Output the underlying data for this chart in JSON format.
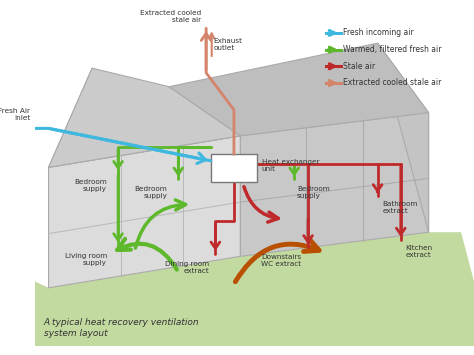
{
  "title": "A typical heat recovery ventilation\nsystem layout",
  "legend_items": [
    {
      "label": "Fresh incoming air",
      "color": "#3fb8e0"
    },
    {
      "label": "Warmed, filtered fresh air",
      "color": "#5db82b"
    },
    {
      "label": "Stale air",
      "color": "#c0292b"
    },
    {
      "label": "Extracted cooled stale air",
      "color": "#d4846a"
    }
  ],
  "labels": {
    "fresh_air_inlet": "Fresh Air\ninlet",
    "extracted_cooled": "Extracted cooled\nstale air",
    "exhaust_outlet": "Exhaust\noutlet",
    "heat_exchanger": "Heat exchanger\nunit",
    "bedroom_supply_left": "Bedroom\nsupply",
    "bedroom_supply_mid": "Bedroom\nsupply",
    "bedroom_supply_right": "Bedroom\nsupply",
    "living_room": "Living room\nsupply",
    "dining_room": "Dining room\nextract",
    "downstairs_wc": "Downstairs\nWC extract",
    "bathroom": "Bathroom\nextract",
    "kitchen": "Kitchen\nextract"
  },
  "fresh_color": "#3fb8e0",
  "green_color": "#5db82b",
  "red_color": "#c0292b",
  "salmon_color": "#d4846a",
  "wall_light": "#dcdcdc",
  "wall_mid": "#c8c8c8",
  "wall_dark": "#b8b8b8",
  "wall_edge": "#aaaaaa",
  "ground_color": "#c2d9a0",
  "bg_color": "#ffffff"
}
